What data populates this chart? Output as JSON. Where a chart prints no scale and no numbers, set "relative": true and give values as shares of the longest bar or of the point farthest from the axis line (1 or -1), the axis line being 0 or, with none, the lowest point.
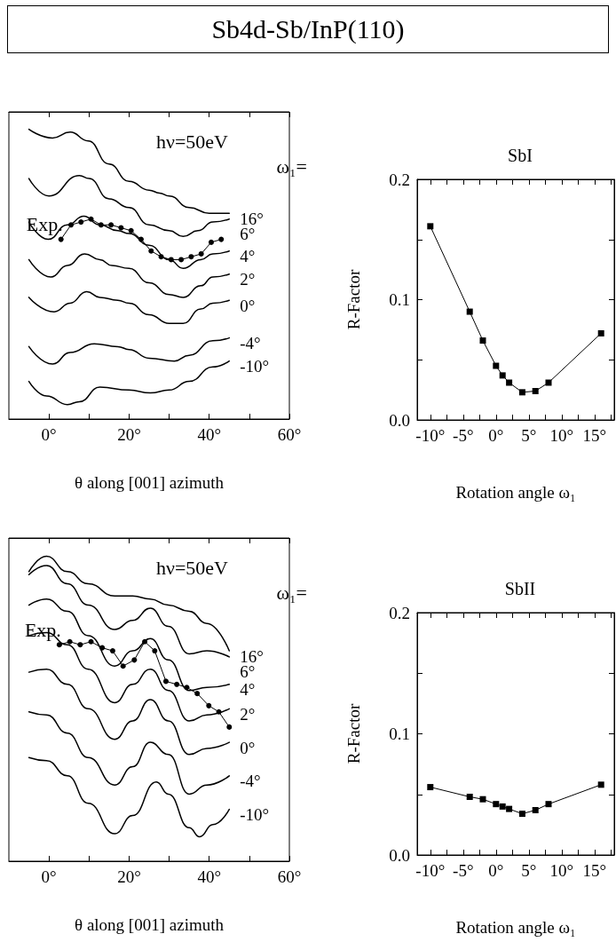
{
  "chart_data": [
    {
      "type": "line",
      "title": "Sb4d-Sb/InP(110)",
      "xlabel": "θ along [001] azimuth",
      "relative": true,
      "annotations": [
        "hν=50eV",
        "ω₁="
      ],
      "xlim": [
        -10,
        60
      ],
      "xticks": [
        {
          "value": 0,
          "label": "0°"
        },
        {
          "value": 10,
          "label": null
        },
        {
          "value": 20,
          "label": "20°"
        },
        {
          "value": 30,
          "label": null
        },
        {
          "value": 40,
          "label": "40°"
        },
        {
          "value": 50,
          "label": null
        },
        {
          "value": 60,
          "label": "60°"
        }
      ],
      "grid": false,
      "legend": false,
      "series": [
        {
          "name": "16°",
          "color": "#000000",
          "x": [
            -5,
            0.9,
            5.3,
            9.8,
            15,
            20,
            25,
            27.6,
            30,
            35,
            40,
            45
          ],
          "values": [
            1.0,
            0.97,
            0.99,
            0.96,
            0.88,
            0.82,
            0.79,
            0.78,
            0.77,
            0.73,
            0.71,
            0.71
          ]
        },
        {
          "name": "6°",
          "color": "#000000",
          "x": [
            -5,
            0,
            7.6,
            10,
            15,
            20,
            25,
            30,
            33.5,
            37.2,
            40.9,
            45
          ],
          "values": [
            0.83,
            0.77,
            0.84,
            0.83,
            0.76,
            0.73,
            0.67,
            0.65,
            0.63,
            0.65,
            0.68,
            0.69
          ]
        },
        {
          "name": "4°",
          "color": "#000000",
          "x": [
            -5,
            -0.2,
            4.6,
            8.7,
            12.7,
            17.2,
            20,
            25,
            30,
            33.5,
            37.9,
            40.9,
            45
          ],
          "values": [
            0.68,
            0.62,
            0.67,
            0.7,
            0.67,
            0.65,
            0.64,
            0.6,
            0.55,
            0.52,
            0.55,
            0.57,
            0.58
          ]
        },
        {
          "name": "Exp.",
          "color": "#000000",
          "marker": "circle",
          "x": [
            3,
            5.5,
            8,
            10.5,
            13,
            15.5,
            18,
            20.5,
            23,
            25.5,
            28,
            30.5,
            33,
            35.5,
            38,
            40.5,
            43
          ],
          "values": [
            0.62,
            0.67,
            0.68,
            0.69,
            0.67,
            0.67,
            0.66,
            0.65,
            0.62,
            0.58,
            0.56,
            0.55,
            0.55,
            0.56,
            0.57,
            0.61,
            0.62
          ]
        },
        {
          "name": "2°",
          "color": "#000000",
          "x": [
            -5,
            0.5,
            4.6,
            8.9,
            12.7,
            15.7,
            20,
            25,
            30,
            33.5,
            37.9,
            40.9,
            45
          ],
          "values": [
            0.55,
            0.49,
            0.53,
            0.57,
            0.55,
            0.53,
            0.52,
            0.47,
            0.43,
            0.42,
            0.46,
            0.49,
            0.5
          ]
        },
        {
          "name": "0°",
          "color": "#000000",
          "x": [
            -5,
            1.3,
            5.3,
            9.4,
            12.7,
            17.2,
            20,
            25,
            30,
            33.5,
            37.9,
            40.9,
            45
          ],
          "values": [
            0.42,
            0.37,
            0.4,
            0.44,
            0.42,
            0.41,
            0.4,
            0.36,
            0.33,
            0.33,
            0.38,
            0.4,
            0.41
          ]
        },
        {
          "name": "-4°",
          "color": "#000000",
          "x": [
            -5,
            0.9,
            5.3,
            11.3,
            17.2,
            20,
            25,
            31.3,
            35,
            40.9,
            45
          ],
          "values": [
            0.25,
            0.19,
            0.23,
            0.26,
            0.25,
            0.24,
            0.21,
            0.2,
            0.22,
            0.27,
            0.28
          ]
        },
        {
          "name": "-10°",
          "color": "#000000",
          "x": [
            -5,
            -0.6,
            4.6,
            7.6,
            12.7,
            20,
            25.3,
            30,
            35,
            40.9,
            45
          ],
          "values": [
            0.13,
            0.08,
            0.05,
            0.06,
            0.11,
            0.1,
            0.09,
            0.1,
            0.13,
            0.18,
            0.2
          ]
        }
      ]
    },
    {
      "type": "line",
      "title": "SbI",
      "xlabel": "Rotation angle ω₁",
      "ylabel": "R-Factor",
      "xlim": [
        -12,
        18
      ],
      "xticks": [
        {
          "value": -10,
          "label": "-10°"
        },
        {
          "value": -7.5,
          "label": null
        },
        {
          "value": -5,
          "label": "-5°"
        },
        {
          "value": -2.5,
          "label": null
        },
        {
          "value": 0,
          "label": "0°"
        },
        {
          "value": 2.5,
          "label": null
        },
        {
          "value": 5,
          "label": "5°"
        },
        {
          "value": 7.5,
          "label": null
        },
        {
          "value": 10,
          "label": "10°"
        },
        {
          "value": 12.5,
          "label": null
        },
        {
          "value": 15,
          "label": "15°"
        },
        {
          "value": 17.5,
          "label": null
        }
      ],
      "ylim": [
        0,
        0.2
      ],
      "yticks": [
        {
          "value": 0,
          "label": "0.0"
        },
        {
          "value": 0.05,
          "label": null
        },
        {
          "value": 0.1,
          "label": "0.1"
        },
        {
          "value": 0.15,
          "label": null
        },
        {
          "value": 0.2,
          "label": "0.2"
        }
      ],
      "grid": false,
      "legend": false,
      "marker": "square",
      "series": [
        {
          "color": "#000000",
          "x": [
            -10,
            -4,
            -2,
            0,
            1,
            2,
            4,
            6,
            8,
            16
          ],
          "values": [
            0.161,
            0.09,
            0.066,
            0.045,
            0.037,
            0.031,
            0.023,
            0.024,
            0.031,
            0.072
          ]
        }
      ]
    },
    {
      "type": "line",
      "xlabel": "θ along [001] azimuth",
      "relative": true,
      "annotations": [
        "hν=50eV",
        "ω₁="
      ],
      "xlim": [
        -10,
        60
      ],
      "xticks": [
        {
          "value": 0,
          "label": "0°"
        },
        {
          "value": 10,
          "label": null
        },
        {
          "value": 20,
          "label": "20°"
        },
        {
          "value": 30,
          "label": null
        },
        {
          "value": 40,
          "label": "40°"
        },
        {
          "value": 50,
          "label": null
        },
        {
          "value": 60,
          "label": "60°"
        }
      ],
      "grid": false,
      "legend": false,
      "series": [
        {
          "name": "16°",
          "color": "#000000",
          "x": [
            -5,
            -0.6,
            4.6,
            9.8,
            16.4,
            20.9,
            25.3,
            29.8,
            35,
            39.4,
            45
          ],
          "values": [
            0.95,
            1.0,
            0.95,
            0.91,
            0.87,
            0.87,
            0.86,
            0.84,
            0.82,
            0.78,
            0.69
          ]
        },
        {
          "name": "6°",
          "color": "#000000",
          "x": [
            -5,
            -0.6,
            4.6,
            9.8,
            16.4,
            20.9,
            25.3,
            29.8,
            35,
            39.4,
            45
          ],
          "values": [
            0.94,
            0.97,
            0.91,
            0.84,
            0.76,
            0.79,
            0.83,
            0.77,
            0.68,
            0.69,
            0.67
          ]
        },
        {
          "name": "4°",
          "color": "#000000",
          "x": [
            -5,
            -0.6,
            4.6,
            9.8,
            16.4,
            20.9,
            25.3,
            29.8,
            35,
            39.4,
            45
          ],
          "values": [
            0.84,
            0.86,
            0.82,
            0.74,
            0.64,
            0.69,
            0.73,
            0.66,
            0.56,
            0.57,
            0.58
          ]
        },
        {
          "name": "Exp.",
          "color": "#000000",
          "marker": "circle",
          "x": [
            2.6,
            5.2,
            7.8,
            10.5,
            13.3,
            15.9,
            18.5,
            21.3,
            23.9,
            26.4,
            29.2,
            31.9,
            34.4,
            37,
            39.9,
            42.4,
            45
          ],
          "values": [
            0.71,
            0.72,
            0.71,
            0.72,
            0.7,
            0.69,
            0.64,
            0.66,
            0.72,
            0.69,
            0.59,
            0.58,
            0.57,
            0.55,
            0.51,
            0.49,
            0.44
          ]
        },
        {
          "name": "2°",
          "color": "#000000",
          "x": [
            -5,
            -0.6,
            4.6,
            9.8,
            16.4,
            20.9,
            25.3,
            29.8,
            35,
            39.4,
            45
          ],
          "values": [
            0.74,
            0.75,
            0.71,
            0.63,
            0.52,
            0.58,
            0.63,
            0.56,
            0.46,
            0.48,
            0.5
          ]
        },
        {
          "name": "0°",
          "color": "#000000",
          "x": [
            -5,
            -0.6,
            4.6,
            9.8,
            16.4,
            20.9,
            25.3,
            29.8,
            35,
            39.4,
            45
          ],
          "values": [
            0.62,
            0.63,
            0.58,
            0.5,
            0.4,
            0.46,
            0.53,
            0.46,
            0.35,
            0.37,
            0.39
          ]
        },
        {
          "name": "-4°",
          "color": "#000000",
          "x": [
            -5,
            -0.6,
            4.6,
            9.8,
            16.4,
            20.9,
            25.3,
            29.8,
            35,
            39.4,
            45
          ],
          "values": [
            0.49,
            0.48,
            0.42,
            0.34,
            0.25,
            0.31,
            0.39,
            0.35,
            0.22,
            0.25,
            0.28
          ]
        },
        {
          "name": "-10°",
          "color": "#000000",
          "x": [
            -5,
            -0.6,
            4.6,
            9.8,
            16.4,
            20.9,
            26.8,
            29.8,
            35,
            37.6,
            40.9,
            45
          ],
          "values": [
            0.34,
            0.33,
            0.28,
            0.19,
            0.09,
            0.15,
            0.26,
            0.22,
            0.11,
            0.08,
            0.12,
            0.17
          ]
        }
      ]
    },
    {
      "type": "line",
      "title": "SbII",
      "xlabel": "Rotation angle ω₁",
      "ylabel": "R-Factor",
      "xlim": [
        -12,
        18
      ],
      "xticks": [
        {
          "value": -10,
          "label": "-10°"
        },
        {
          "value": -7.5,
          "label": null
        },
        {
          "value": -5,
          "label": "-5°"
        },
        {
          "value": -2.5,
          "label": null
        },
        {
          "value": 0,
          "label": "0°"
        },
        {
          "value": 2.5,
          "label": null
        },
        {
          "value": 5,
          "label": "5°"
        },
        {
          "value": 7.5,
          "label": null
        },
        {
          "value": 10,
          "label": "10°"
        },
        {
          "value": 12.5,
          "label": null
        },
        {
          "value": 15,
          "label": "15°"
        },
        {
          "value": 17.5,
          "label": null
        }
      ],
      "ylim": [
        0,
        0.2
      ],
      "yticks": [
        {
          "value": 0,
          "label": "0.0"
        },
        {
          "value": 0.05,
          "label": null
        },
        {
          "value": 0.1,
          "label": "0.1"
        },
        {
          "value": 0.15,
          "label": null
        },
        {
          "value": 0.2,
          "label": "0.2"
        }
      ],
      "grid": false,
      "legend": false,
      "marker": "square",
      "series": [
        {
          "color": "#000000",
          "x": [
            -10,
            -4,
            -2,
            0,
            1,
            2,
            4,
            6,
            8,
            16
          ],
          "values": [
            0.056,
            0.048,
            0.046,
            0.042,
            0.04,
            0.038,
            0.034,
            0.037,
            0.042,
            0.058
          ]
        }
      ]
    }
  ]
}
